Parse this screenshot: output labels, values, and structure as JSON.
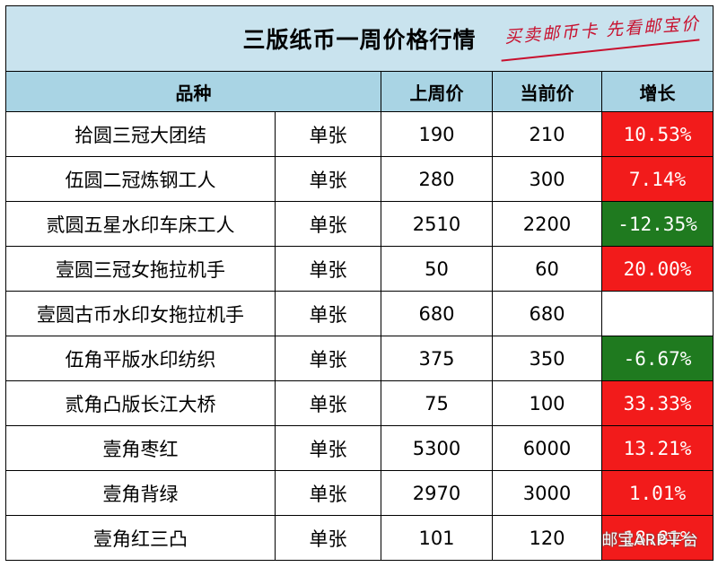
{
  "title": "三版纸币一周价格行情",
  "slogan": "买卖邮币卡 先看邮宝价",
  "headers": {
    "name": "品种",
    "last_week": "上周价",
    "current": "当前价",
    "growth": "增长"
  },
  "rows": [
    {
      "name": "拾圆三冠大团结",
      "unit": "单张",
      "last_week": "190",
      "current": "210",
      "growth": "10.53%",
      "trend": "up"
    },
    {
      "name": "伍圆二冠炼钢工人",
      "unit": "单张",
      "last_week": "280",
      "current": "300",
      "growth": "7.14%",
      "trend": "up"
    },
    {
      "name": "贰圆五星水印车床工人",
      "unit": "单张",
      "last_week": "2510",
      "current": "2200",
      "growth": "-12.35%",
      "trend": "down"
    },
    {
      "name": "壹圆三冠女拖拉机手",
      "unit": "单张",
      "last_week": "50",
      "current": "60",
      "growth": "20.00%",
      "trend": "up"
    },
    {
      "name": "壹圆古币水印女拖拉机手",
      "unit": "单张",
      "last_week": "680",
      "current": "680",
      "growth": "",
      "trend": "none"
    },
    {
      "name": "伍角平版水印纺织",
      "unit": "单张",
      "last_week": "375",
      "current": "350",
      "growth": "-6.67%",
      "trend": "down"
    },
    {
      "name": "贰角凸版长江大桥",
      "unit": "单张",
      "last_week": "75",
      "current": "100",
      "growth": "33.33%",
      "trend": "up"
    },
    {
      "name": "壹角枣红",
      "unit": "单张",
      "last_week": "5300",
      "current": "6000",
      "growth": "13.21%",
      "trend": "up"
    },
    {
      "name": "壹角背绿",
      "unit": "单张",
      "last_week": "2970",
      "current": "3000",
      "growth": "1.01%",
      "trend": "up"
    },
    {
      "name": "壹角红三凸",
      "unit": "单张",
      "last_week": "101",
      "current": "120",
      "growth": "18.81%",
      "trend": "up"
    }
  ],
  "watermark": "邮宝ARP平台",
  "colors": {
    "title_bg": "#c9e3ee",
    "header_bg": "#a9d4e4",
    "up": "#f21b1b",
    "down": "#1f7a1f",
    "slogan": "#c8102e"
  }
}
